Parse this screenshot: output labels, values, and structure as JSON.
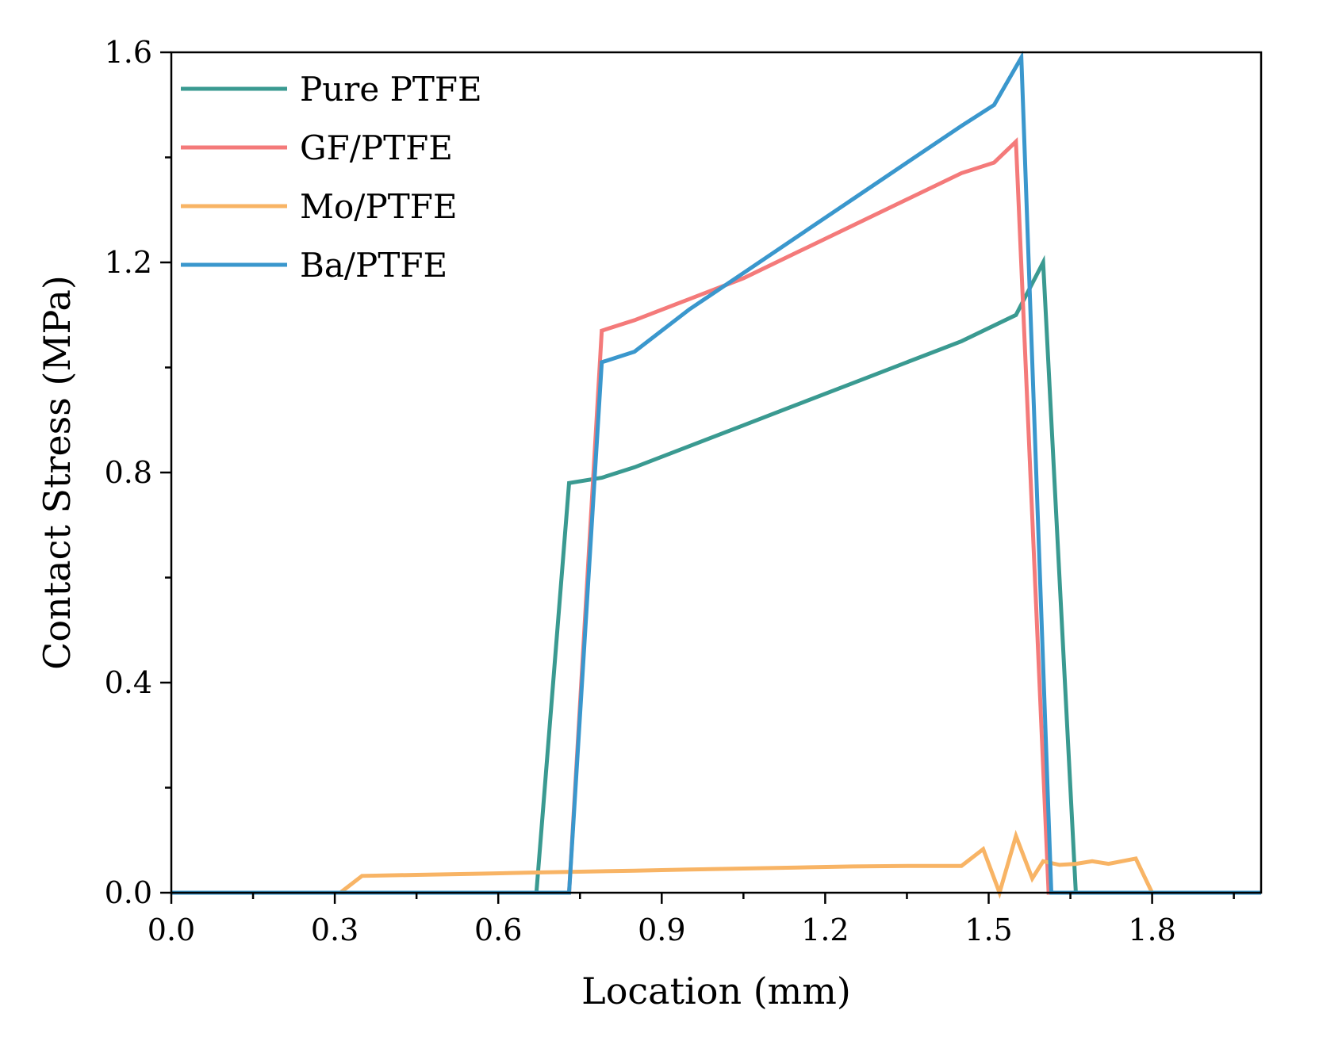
{
  "chart_data": {
    "type": "line",
    "title": "",
    "xlabel": "Location (mm)",
    "ylabel": "Contact Stress (MPa)",
    "xlim": [
      0,
      2.0
    ],
    "ylim": [
      0,
      1.6
    ],
    "xticks": [
      0.0,
      0.3,
      0.6,
      0.9,
      1.2,
      1.5,
      1.8
    ],
    "xtick_labels": [
      "0.0",
      "0.3",
      "0.6",
      "0.9",
      "1.2",
      "1.5",
      "1.8"
    ],
    "yticks": [
      0.0,
      0.4,
      0.8,
      1.2,
      1.6
    ],
    "ytick_labels": [
      "0.0",
      "0.4",
      "0.8",
      "1.2",
      "1.6"
    ],
    "grid": false,
    "legend_position": "top-left",
    "series": [
      {
        "name": "Pure PTFE",
        "color": "#3a9a91",
        "x": [
          0.0,
          0.67,
          0.73,
          0.79,
          0.85,
          0.95,
          1.05,
          1.15,
          1.25,
          1.35,
          1.45,
          1.55,
          1.6,
          1.66,
          2.0
        ],
        "y": [
          0.0,
          0.0,
          0.78,
          0.79,
          0.81,
          0.85,
          0.89,
          0.93,
          0.97,
          1.01,
          1.05,
          1.1,
          1.2,
          0.0,
          0.0
        ]
      },
      {
        "name": "GF/PTFE",
        "color": "#f47a7a",
        "x": [
          0.0,
          0.73,
          0.79,
          0.85,
          0.95,
          1.05,
          1.15,
          1.25,
          1.35,
          1.45,
          1.51,
          1.55,
          1.61,
          2.0
        ],
        "y": [
          0.0,
          0.0,
          1.07,
          1.09,
          1.13,
          1.17,
          1.22,
          1.27,
          1.32,
          1.37,
          1.39,
          1.43,
          0.0,
          0.0
        ]
      },
      {
        "name": "Mo/PTFE",
        "color": "#f8b465",
        "x": [
          0.0,
          0.31,
          0.35,
          0.45,
          0.55,
          0.65,
          0.75,
          0.85,
          0.95,
          1.05,
          1.15,
          1.25,
          1.35,
          1.45,
          1.49,
          1.52,
          1.55,
          1.58,
          1.6,
          1.63,
          1.66,
          1.69,
          1.72,
          1.77,
          1.8,
          2.0
        ],
        "y": [
          0.0,
          0.0,
          0.032,
          0.034,
          0.036,
          0.038,
          0.04,
          0.042,
          0.044,
          0.046,
          0.048,
          0.05,
          0.051,
          0.051,
          0.083,
          0.0,
          0.108,
          0.027,
          0.06,
          0.053,
          0.055,
          0.06,
          0.055,
          0.065,
          0.0,
          0.0
        ]
      },
      {
        "name": "Ba/PTFE",
        "color": "#3a97cd",
        "x": [
          0.0,
          0.73,
          0.79,
          0.85,
          0.95,
          1.05,
          1.15,
          1.25,
          1.35,
          1.45,
          1.51,
          1.56,
          1.615,
          2.0
        ],
        "y": [
          0.0,
          0.0,
          1.01,
          1.03,
          1.11,
          1.18,
          1.25,
          1.32,
          1.39,
          1.46,
          1.5,
          1.59,
          0.0,
          0.0
        ]
      }
    ]
  }
}
